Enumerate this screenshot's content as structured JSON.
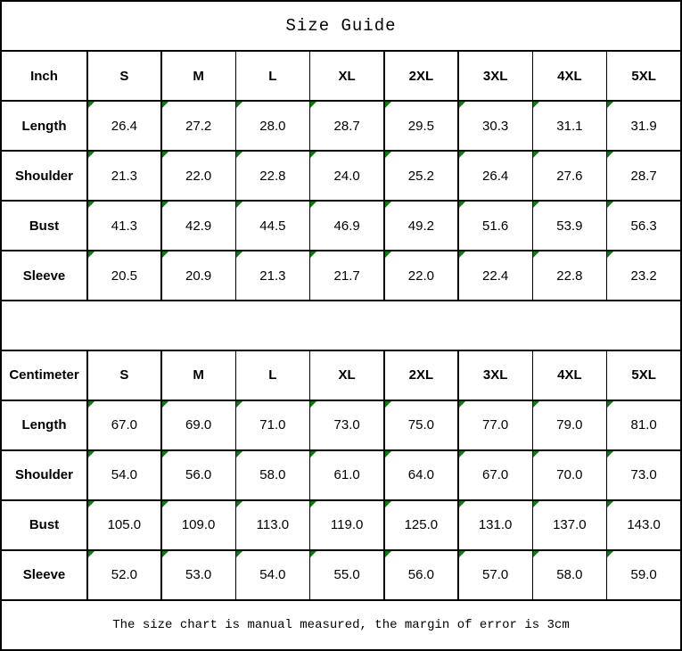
{
  "title": "Size Guide",
  "footer_note": "The size chart is manual measured, the margin of error is 3cm",
  "colors": {
    "border": "#000000",
    "text": "#000000",
    "background": "#ffffff",
    "flag_green": "#008000"
  },
  "chart_data": [
    {
      "type": "table",
      "title": "Size Guide",
      "unit_label": "Inch",
      "size_columns": [
        "S",
        "M",
        "L",
        "XL",
        "2XL",
        "3XL",
        "4XL",
        "5XL"
      ],
      "rows": [
        {
          "label": "Length",
          "values": [
            "26.4",
            "27.2",
            "28.0",
            "28.7",
            "29.5",
            "30.3",
            "31.1",
            "31.9"
          ]
        },
        {
          "label": "Shoulder",
          "values": [
            "21.3",
            "22.0",
            "22.8",
            "24.0",
            "25.2",
            "26.4",
            "27.6",
            "28.7"
          ]
        },
        {
          "label": "Bust",
          "values": [
            "41.3",
            "42.9",
            "44.5",
            "46.9",
            "49.2",
            "51.6",
            "53.9",
            "56.3"
          ]
        },
        {
          "label": "Sleeve",
          "values": [
            "20.5",
            "20.9",
            "21.3",
            "21.7",
            "22.0",
            "22.4",
            "22.8",
            "23.2"
          ]
        }
      ]
    },
    {
      "type": "table",
      "unit_label": "Centimeter",
      "size_columns": [
        "S",
        "M",
        "L",
        "XL",
        "2XL",
        "3XL",
        "4XL",
        "5XL"
      ],
      "rows": [
        {
          "label": "Length",
          "values": [
            "67.0",
            "69.0",
            "71.0",
            "73.0",
            "75.0",
            "77.0",
            "79.0",
            "81.0"
          ]
        },
        {
          "label": "Shoulder",
          "values": [
            "54.0",
            "56.0",
            "58.0",
            "61.0",
            "64.0",
            "67.0",
            "70.0",
            "73.0"
          ]
        },
        {
          "label": "Bust",
          "values": [
            "105.0",
            "109.0",
            "113.0",
            "119.0",
            "125.0",
            "131.0",
            "137.0",
            "143.0"
          ]
        },
        {
          "label": "Sleeve",
          "values": [
            "52.0",
            "53.0",
            "54.0",
            "55.0",
            "56.0",
            "57.0",
            "58.0",
            "59.0"
          ]
        }
      ]
    }
  ]
}
